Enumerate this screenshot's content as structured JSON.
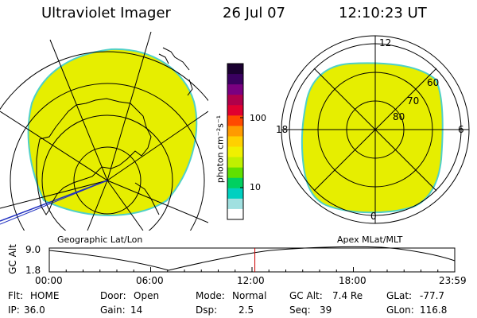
{
  "header": {
    "instrument": "Ultraviolet Imager",
    "date": "26 Jul 07",
    "time": "12:10:23 UT"
  },
  "colors": {
    "image_fill": "#e6ee00",
    "image_edge": "#4fd0c8",
    "marker": "#cc0000"
  },
  "colorbar": {
    "unit_label": "photon cm⁻²s⁻¹",
    "ticks": [
      "100",
      "10"
    ],
    "scale": "log",
    "colors": [
      "#1a0030",
      "#3a0060",
      "#7a0080",
      "#b0004a",
      "#e00030",
      "#ff4a00",
      "#ff9a00",
      "#ffd000",
      "#f0f000",
      "#c0f000",
      "#60e000",
      "#00d060",
      "#00d0c0",
      "#a0e0e0",
      "#ffffff"
    ]
  },
  "geo_panel": {
    "label": "Geographic Lat/Lon"
  },
  "apex_panel": {
    "label": "Apex MLat/MLT",
    "mlt_labels": {
      "top": "12",
      "right": "6",
      "bottom": "0",
      "left": "18"
    },
    "lat_labels": [
      "60",
      "70",
      "80"
    ]
  },
  "timeline": {
    "axis_label": "GC Alt",
    "y_ticks": [
      "9.0",
      "1.8"
    ],
    "x_ticks": [
      "00:00",
      "06:00",
      "12:00",
      "18:00",
      "23:59"
    ],
    "current_time_fraction": 0.507
  },
  "status": {
    "flt_label": "Flt:",
    "flt_value": "HOME",
    "ip_label": "IP:",
    "ip_value": "36.0",
    "door_label": "Door:",
    "door_value": "Open",
    "gain_label": "Gain:",
    "gain_value": "14",
    "mode_label": "Mode:",
    "mode_value": "Normal",
    "dsp_label": "Dsp:",
    "dsp_value": "2.5",
    "gcalt_label": "GC Alt:",
    "gcalt_value": "7.4 Re",
    "seq_label": "Seq:",
    "seq_value": "39",
    "glat_label": "GLat:",
    "glat_value": "-77.7",
    "glon_label": "GLon:",
    "glon_value": "116.8"
  }
}
